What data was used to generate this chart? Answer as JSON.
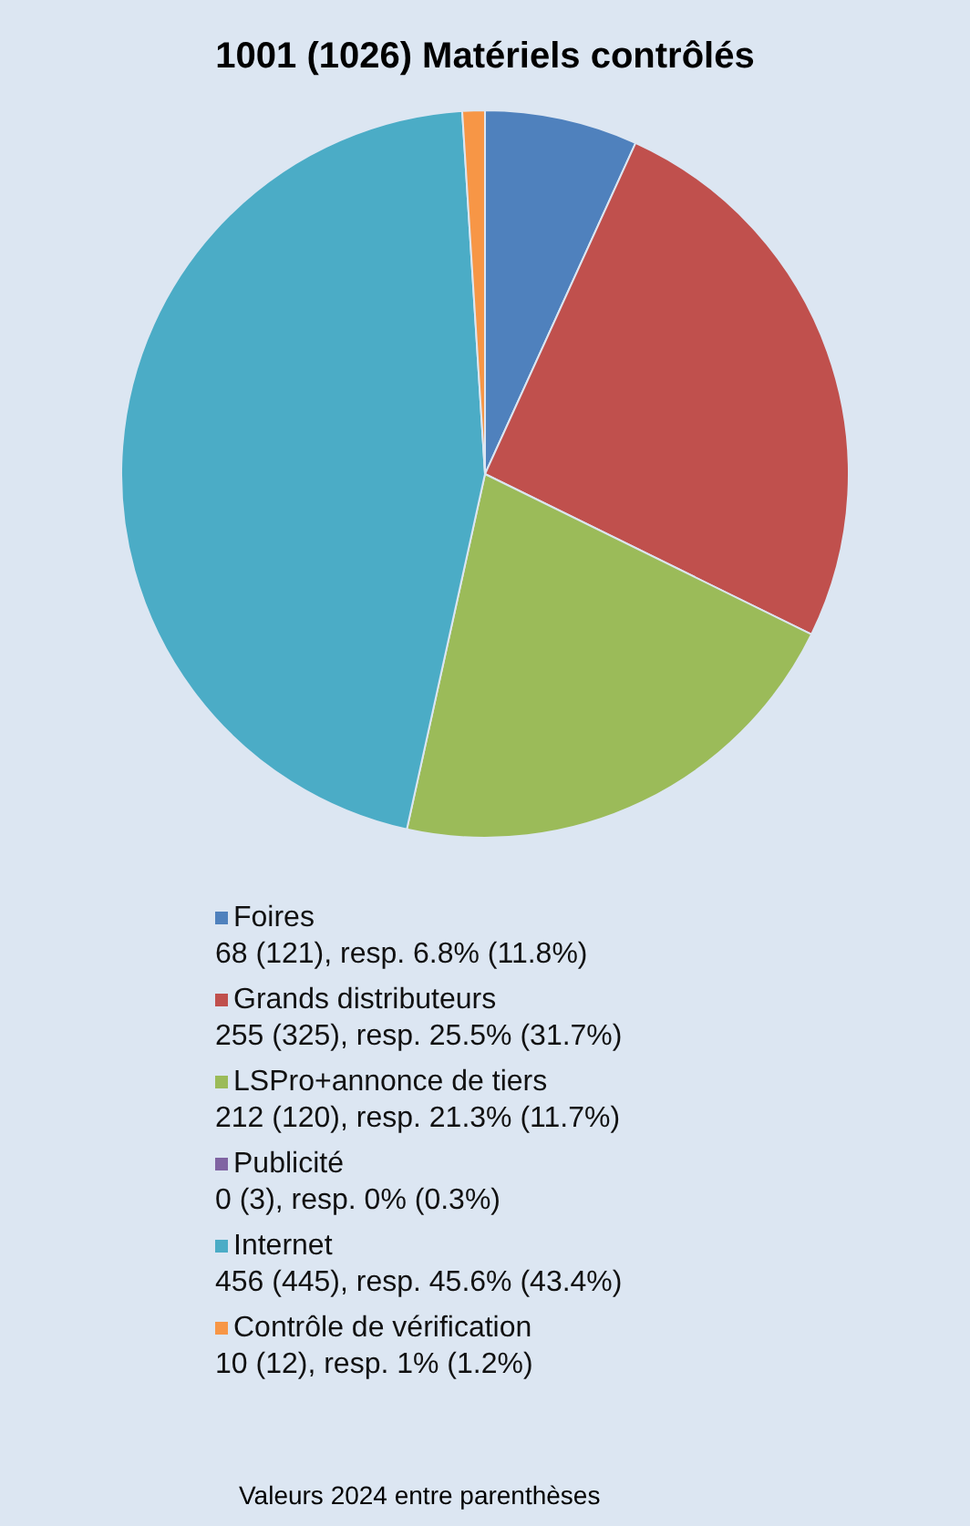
{
  "chart_data": {
    "type": "pie",
    "title": "1001 (1026) Matériels contrôlés",
    "categories": [
      "Foires",
      "Grands distributeurs",
      "LSPro+annonce de tiers",
      "Publicité",
      "Internet",
      "Contrôle de vérification"
    ],
    "values": [
      68,
      255,
      212,
      0,
      456,
      10
    ],
    "colors": [
      "#4f81bd",
      "#c0504d",
      "#9bbb59",
      "#8064a2",
      "#4bacc6",
      "#f79646"
    ],
    "value_labels": [
      "68 (121), resp. 6.8% (11.8%)",
      "255 (325), resp. 25.5% (31.7%)",
      "212 (120), resp. 21.3% (11.7%)",
      "0 (3), resp. 0% (0.3%)",
      "456 (445), resp. 45.6% (43.4%)",
      "10 (12), resp. 1% (1.2%)"
    ],
    "legend": "bottom",
    "annotations": [
      "Valeurs 2024 entre parenthèses"
    ]
  }
}
